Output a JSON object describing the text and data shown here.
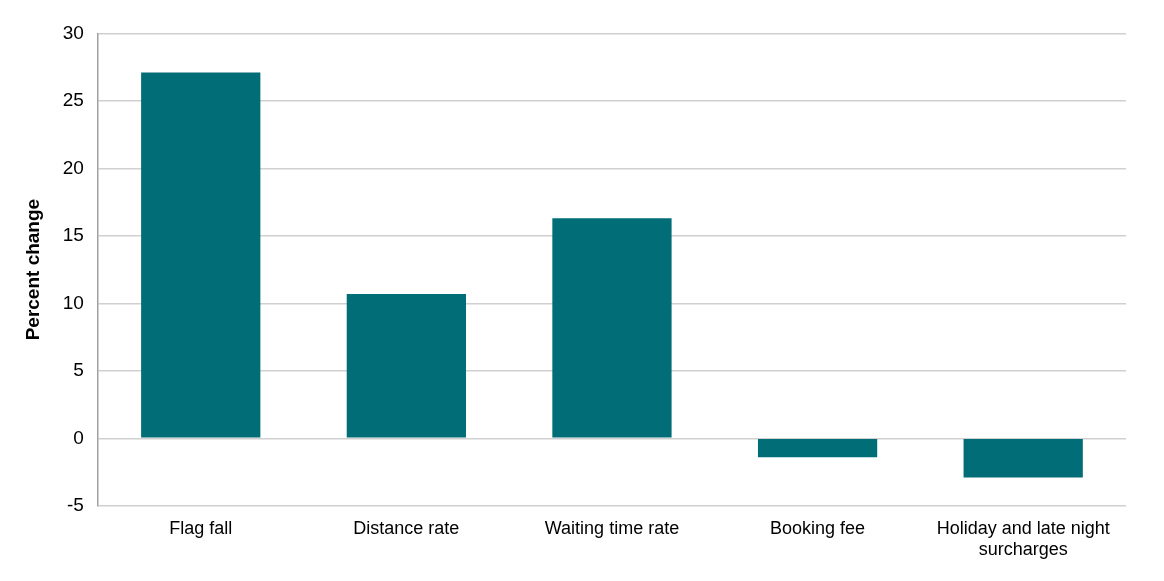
{
  "chart_data": {
    "type": "bar",
    "ylabel": "Percent change",
    "categories": [
      "Flag fall",
      "Distance rate",
      "Waiting time rate",
      "Booking fee",
      "Holiday and late night surcharges"
    ],
    "values": [
      27.1,
      10.7,
      16.3,
      -1.4,
      -2.9
    ],
    "color": "#006d77",
    "ylim": [
      -5,
      30
    ],
    "yticks": [
      -5,
      0,
      5,
      10,
      15,
      20,
      25,
      30
    ],
    "grid": "y"
  }
}
